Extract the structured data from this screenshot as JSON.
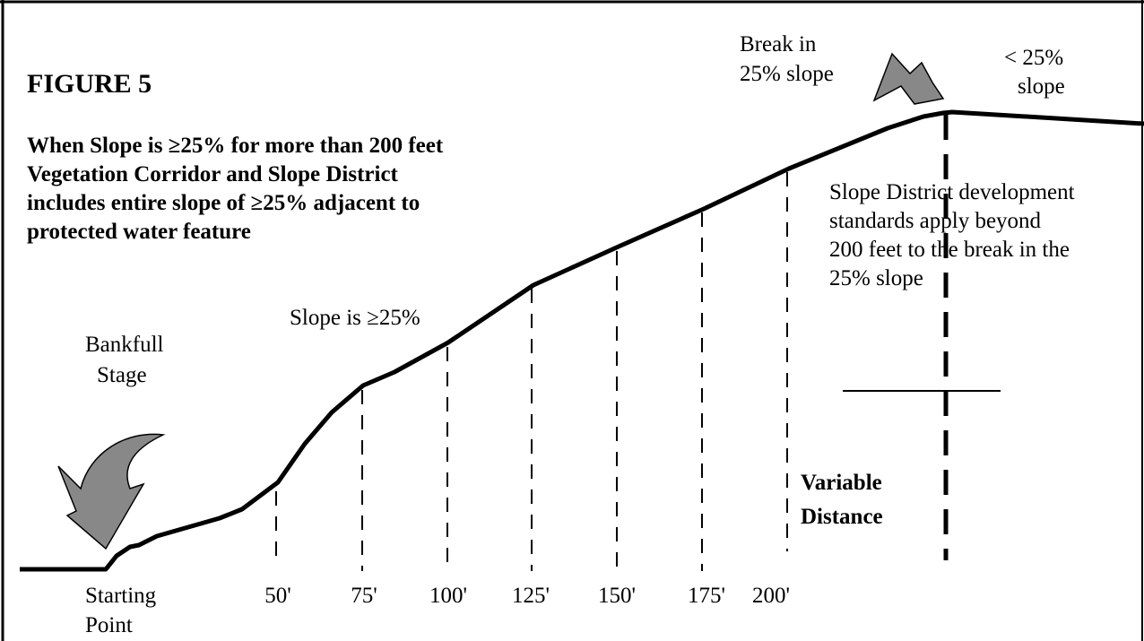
{
  "figure": {
    "title": "FIGURE 5",
    "caption": [
      "When Slope is ≥25%  for more than 200 feet",
      "Vegetation Corridor and Slope District",
      "includes entire slope of ≥25% adjacent to",
      "protected water feature"
    ]
  },
  "labels": {
    "break": [
      "Break in",
      "25% slope"
    ],
    "less": [
      "< 25%",
      "slope"
    ],
    "standards": [
      "Slope District development",
      "standards apply   beyond",
      "200 feet to the break in the",
      "25% slope"
    ],
    "slope": "Slope is ≥25%",
    "bankfull": [
      "Bankfull",
      "Stage"
    ],
    "variable": [
      "Variable",
      "Distance"
    ],
    "start": [
      "Starting",
      "Point"
    ]
  },
  "distances": [
    "50'",
    "75'",
    "100'",
    "125'",
    "150'",
    "175'",
    "200'"
  ]
}
